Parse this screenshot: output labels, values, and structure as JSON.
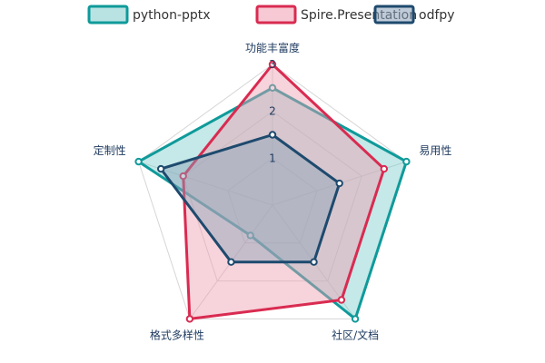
{
  "chart_data": {
    "type": "radar",
    "title": "",
    "categories": [
      "功能丰富度",
      "易用性",
      "社区/文档",
      "格式多样性",
      "定制性"
    ],
    "series": [
      {
        "name": "python-pptx",
        "values": [
          2.5,
          3,
          3,
          0.8,
          3
        ]
      },
      {
        "name": "Spire.Presentation",
        "values": [
          3,
          2.5,
          2.5,
          3,
          2
        ]
      },
      {
        "name": "odfpy",
        "values": [
          1.5,
          1.5,
          1.5,
          1.5,
          2.5
        ]
      }
    ],
    "rlim": [
      0,
      3
    ],
    "ticks": [
      "1",
      "2",
      "3"
    ],
    "grid": true,
    "legend_position": "top",
    "colors": {
      "python-pptx": {
        "stroke": "#0f9a9a",
        "fill": "#7fcccc"
      },
      "Spire.Presentation": {
        "stroke": "#d92b51",
        "fill": "#ee9db0"
      },
      "odfpy": {
        "stroke": "#1e4a6e",
        "fill": "#8aa1b8"
      }
    }
  }
}
